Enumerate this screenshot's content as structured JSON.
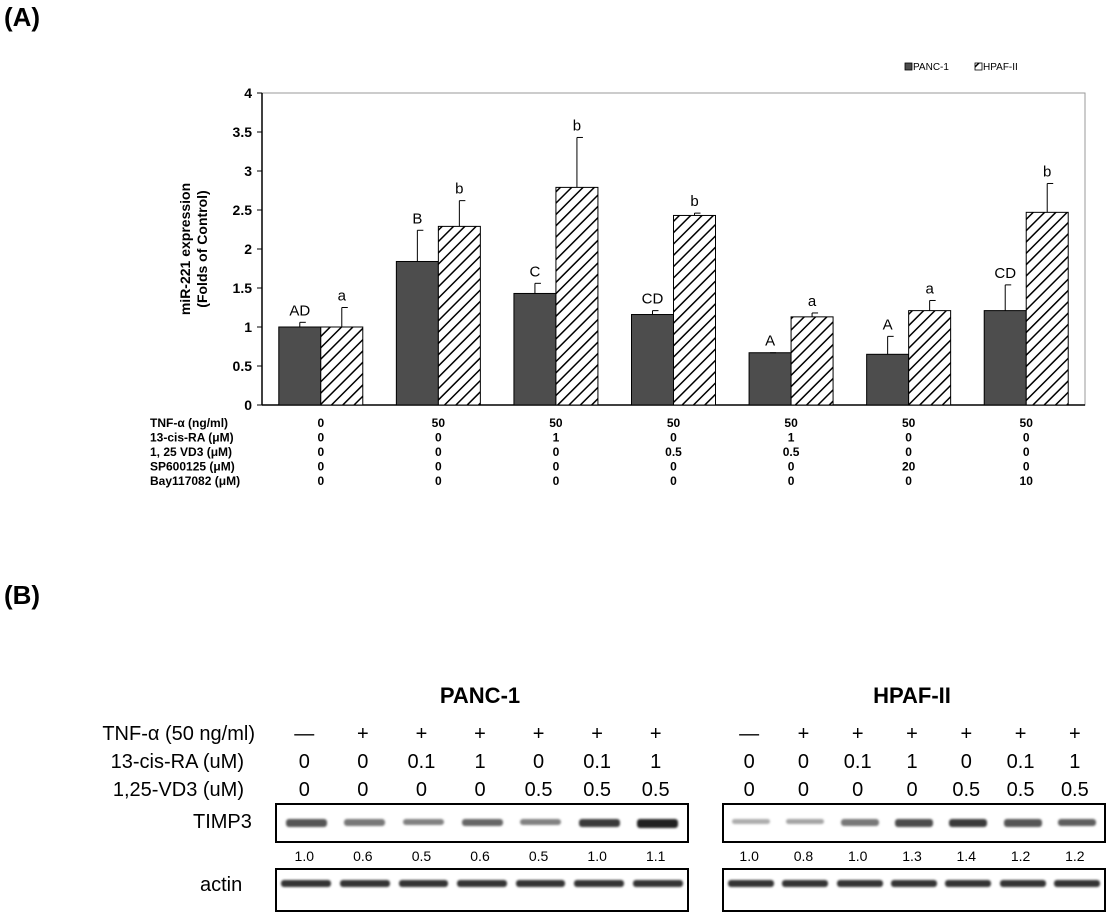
{
  "panel_a_label": "(A)",
  "panel_b_label": "(B)",
  "chart_data": {
    "type": "bar",
    "title": "",
    "xlabel": "",
    "ylabel": "miR-221 expression\n(Folds of Control)",
    "ylim": [
      0,
      4
    ],
    "yticks": [
      "0",
      "0.5",
      "1",
      "1.5",
      "2",
      "2.5",
      "3",
      "3.5",
      "4"
    ],
    "grid": false,
    "legend_position": "top-right",
    "series": [
      {
        "name": "PANC-1",
        "color": "#4d4d4d",
        "pattern": "solid",
        "values": [
          1.0,
          1.84,
          1.43,
          1.16,
          0.67,
          0.65,
          1.21
        ],
        "errors": [
          0.06,
          0.4,
          0.13,
          0.05,
          0.0,
          0.23,
          0.33
        ],
        "labels": [
          "AD",
          "B",
          "C",
          "CD",
          "A",
          "A",
          "CD"
        ]
      },
      {
        "name": "HPAF-II",
        "color": "#ffffff",
        "pattern": "hatched",
        "values": [
          1.0,
          2.29,
          2.79,
          2.43,
          1.13,
          1.21,
          2.47
        ],
        "errors": [
          0.25,
          0.33,
          0.64,
          0.03,
          0.05,
          0.13,
          0.37
        ],
        "labels": [
          "a",
          "b",
          "b",
          "b",
          "a",
          "a",
          "b"
        ]
      }
    ],
    "condition_rows": [
      {
        "name": "TNF-α (ng/ml)",
        "values": [
          "0",
          "50",
          "50",
          "50",
          "50",
          "50",
          "50"
        ]
      },
      {
        "name": "13-cis-RA (μM)",
        "values": [
          "0",
          "0",
          "1",
          "0",
          "1",
          "0",
          "0"
        ]
      },
      {
        "name": "1, 25 VD3 (μM)",
        "values": [
          "0",
          "0",
          "0",
          "0.5",
          "0.5",
          "0",
          "0"
        ]
      },
      {
        "name": "SP600125 (μM)",
        "values": [
          "0",
          "0",
          "0",
          "0",
          "0",
          "20",
          "0"
        ]
      },
      {
        "name": "Bay117082 (μM)",
        "values": [
          "0",
          "0",
          "0",
          "0",
          "0",
          "0",
          "10"
        ]
      }
    ]
  },
  "blot": {
    "groups": [
      {
        "title": "PANC-1",
        "tnf": [
          "—",
          "+",
          "+",
          "+",
          "+",
          "+",
          "+"
        ],
        "cis_ra": [
          "0",
          "0",
          "0.1",
          "1",
          "0",
          "0.1",
          "1"
        ],
        "vd3": [
          "0",
          "0",
          "0",
          "0",
          "0.5",
          "0.5",
          "0.5"
        ],
        "timp3_quant": [
          "1.0",
          "0.6",
          "0.5",
          "0.6",
          "0.5",
          "1.0",
          "1.1"
        ],
        "timp3_levels": [
          0.7,
          0.5,
          0.45,
          0.6,
          0.45,
          0.85,
          1.0
        ]
      },
      {
        "title": "HPAF-II",
        "tnf": [
          "—",
          "+",
          "+",
          "+",
          "+",
          "+",
          "+"
        ],
        "cis_ra": [
          "0",
          "0",
          "0.1",
          "1",
          "0",
          "0.1",
          "1"
        ],
        "vd3": [
          "0",
          "0",
          "0",
          "0",
          "0.5",
          "0.5",
          "0.5"
        ],
        "timp3_quant": [
          "1.0",
          "0.8",
          "1.0",
          "1.3",
          "1.4",
          "1.2",
          "1.2"
        ],
        "timp3_levels": [
          0.2,
          0.25,
          0.5,
          0.75,
          0.85,
          0.7,
          0.65
        ]
      }
    ],
    "row_labels": {
      "tnf": "TNF-α (50 ng/ml)",
      "cis_ra": "13-cis-RA (uM)",
      "vd3": "1,25-VD3 (uM)",
      "timp3": "TIMP3",
      "actin": "actin"
    }
  }
}
